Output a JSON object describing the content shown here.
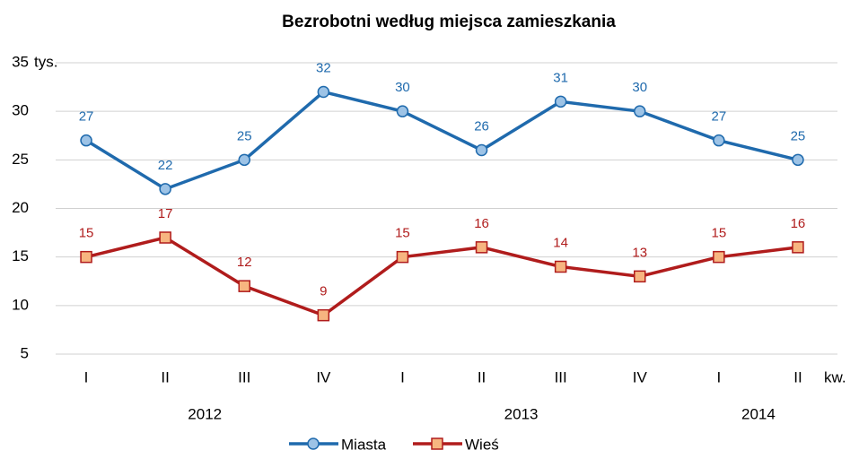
{
  "chart_data": {
    "type": "line",
    "title": "Bezrobotni według miejsca zamieszkania",
    "y_unit": "tys.",
    "x_unit": "kw.",
    "categories": [
      [
        "I",
        "2012"
      ],
      [
        "II",
        "2012"
      ],
      [
        "III",
        "2012"
      ],
      [
        "IV",
        "2012"
      ],
      [
        "I",
        "2013"
      ],
      [
        "II",
        "2013"
      ],
      [
        "III",
        "2013"
      ],
      [
        "IV",
        "2013"
      ],
      [
        "I",
        "2014"
      ],
      [
        "II",
        "2014"
      ]
    ],
    "series": [
      {
        "name": "Miasta",
        "color": "#1f6aad",
        "marker": "circle",
        "marker_fill": "#9dc3e6",
        "values": [
          27,
          22,
          25,
          32,
          30,
          26,
          31,
          30,
          27,
          25
        ]
      },
      {
        "name": "Wieś",
        "color": "#b01c1c",
        "marker": "square",
        "marker_fill": "#f7b580",
        "values": [
          15,
          17,
          12,
          9,
          15,
          16,
          14,
          13,
          15,
          16
        ]
      }
    ],
    "ylim": [
      5,
      35
    ],
    "yticks": [
      5,
      10,
      15,
      20,
      25,
      30,
      35
    ],
    "grid": true
  }
}
